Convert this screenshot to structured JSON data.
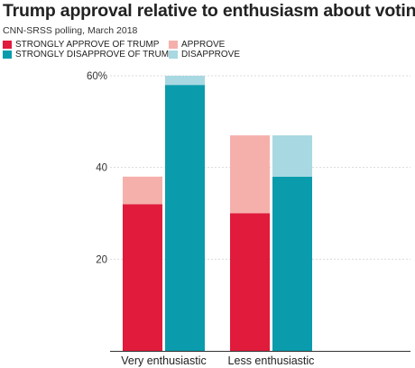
{
  "chart_data": {
    "type": "bar",
    "stacked": true,
    "title": "Trump approval relative to enthusiasm about voting",
    "subtitle": "CNN-SRSS polling, March 2018",
    "categories": [
      "Very enthusiastic",
      "Less enthusiastic"
    ],
    "groups": [
      {
        "name": "approve",
        "layers": [
          {
            "series": "STRONGLY APPROVE OF TRUMP",
            "color": "#e01b3c",
            "values": [
              32,
              30
            ]
          },
          {
            "series": "APPROVE",
            "color": "#f6b0ac",
            "values": [
              6,
              17
            ]
          }
        ]
      },
      {
        "name": "disapprove",
        "layers": [
          {
            "series": "STRONGLY DISAPPROVE OF TRUMP",
            "color": "#0a9cad",
            "values": [
              58,
              38
            ]
          },
          {
            "series": "DISAPPROVE",
            "color": "#a8d8e2",
            "values": [
              2,
              9
            ]
          }
        ]
      }
    ],
    "yticks": [
      "20",
      "40",
      "60%"
    ],
    "ylim": [
      0,
      60
    ],
    "grid": true,
    "legend": "top-left"
  },
  "legend": [
    {
      "label": "STRONGLY APPROVE OF TRUMP",
      "color": "#e01b3c"
    },
    {
      "label": "APPROVE",
      "color": "#f6b0ac"
    },
    {
      "label": "STRONGLY DISAPPROVE OF TRUMP",
      "color": "#0a9cad"
    },
    {
      "label": "DISAPPROVE",
      "color": "#a8d8e2"
    }
  ]
}
